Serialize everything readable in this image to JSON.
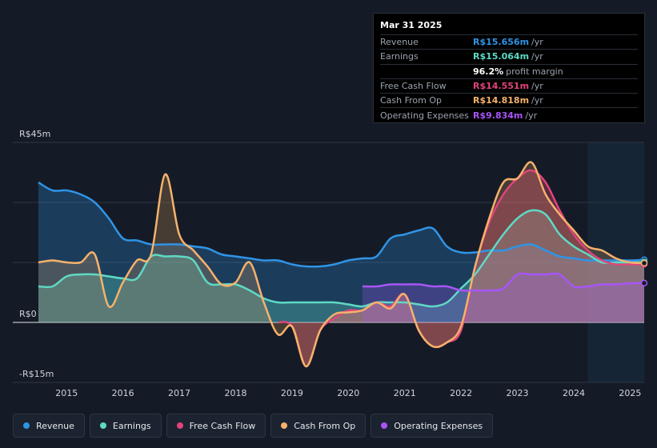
{
  "tooltip": {
    "date": "Mar 31 2025",
    "rows": [
      {
        "label": "Revenue",
        "value": "R$15.656m",
        "unit": "/yr",
        "color": "#2f94e6"
      },
      {
        "label": "Earnings",
        "value": "R$15.064m",
        "unit": "/yr",
        "color": "#5fd9c4"
      },
      {
        "label": "",
        "value": "96.2%",
        "unit": "profit margin",
        "color": "#ffffff"
      },
      {
        "label": "Free Cash Flow",
        "value": "R$14.551m",
        "unit": "/yr",
        "color": "#e0447c"
      },
      {
        "label": "Cash From Op",
        "value": "R$14.818m",
        "unit": "/yr",
        "color": "#f5b26b"
      },
      {
        "label": "Operating Expenses",
        "value": "R$9.834m",
        "unit": "/yr",
        "color": "#a855f7"
      }
    ]
  },
  "legend": [
    {
      "label": "Revenue",
      "color": "#2f94e6"
    },
    {
      "label": "Earnings",
      "color": "#5fd9c4"
    },
    {
      "label": "Free Cash Flow",
      "color": "#e0447c"
    },
    {
      "label": "Cash From Op",
      "color": "#f5b26b"
    },
    {
      "label": "Operating Expenses",
      "color": "#a855f7"
    }
  ],
  "chart_data": {
    "type": "area",
    "title": "",
    "xlabel": "",
    "ylabel": "",
    "y_axis_labels": {
      "top": "R$45m",
      "zero": "R$0",
      "bottom": "-R$15m"
    },
    "ylim": [
      -15,
      45
    ],
    "xlim": [
      2014.5,
      2025.25
    ],
    "x_ticks": [
      "2015",
      "2016",
      "2017",
      "2018",
      "2019",
      "2020",
      "2021",
      "2022",
      "2023",
      "2024",
      "2025"
    ],
    "highlight_from": 2024.25,
    "series": [
      {
        "name": "Revenue",
        "color": "#2f94e6",
        "points": [
          [
            2014.5,
            35
          ],
          [
            2014.75,
            33
          ],
          [
            2015.0,
            33
          ],
          [
            2015.25,
            32
          ],
          [
            2015.5,
            30
          ],
          [
            2015.75,
            26
          ],
          [
            2016.0,
            21
          ],
          [
            2016.25,
            20.5
          ],
          [
            2016.5,
            19.5
          ],
          [
            2016.75,
            19.5
          ],
          [
            2017.0,
            19.5
          ],
          [
            2017.25,
            19
          ],
          [
            2017.5,
            18.5
          ],
          [
            2017.75,
            17
          ],
          [
            2018.0,
            16.5
          ],
          [
            2018.25,
            16
          ],
          [
            2018.5,
            15.5
          ],
          [
            2018.75,
            15.5
          ],
          [
            2019.0,
            14.5
          ],
          [
            2019.25,
            14
          ],
          [
            2019.5,
            14
          ],
          [
            2019.75,
            14.5
          ],
          [
            2020.0,
            15.5
          ],
          [
            2020.25,
            16
          ],
          [
            2020.5,
            16.5
          ],
          [
            2020.75,
            21
          ],
          [
            2021.0,
            22
          ],
          [
            2021.25,
            23
          ],
          [
            2021.5,
            23.5
          ],
          [
            2021.75,
            19
          ],
          [
            2022.0,
            17.5
          ],
          [
            2022.25,
            17.5
          ],
          [
            2022.5,
            18
          ],
          [
            2022.75,
            18
          ],
          [
            2023.0,
            19
          ],
          [
            2023.25,
            19.5
          ],
          [
            2023.5,
            18
          ],
          [
            2023.75,
            16.5
          ],
          [
            2024.0,
            16
          ],
          [
            2024.25,
            15.5
          ],
          [
            2024.5,
            15.5
          ],
          [
            2024.75,
            15.5
          ],
          [
            2025.0,
            15.5
          ],
          [
            2025.25,
            15.656
          ]
        ]
      },
      {
        "name": "Earnings",
        "color": "#5fd9c4",
        "points": [
          [
            2014.5,
            9
          ],
          [
            2014.75,
            9
          ],
          [
            2015.0,
            11.5
          ],
          [
            2015.25,
            12
          ],
          [
            2015.5,
            12
          ],
          [
            2015.75,
            11.5
          ],
          [
            2016.0,
            11
          ],
          [
            2016.25,
            11
          ],
          [
            2016.5,
            16.5
          ],
          [
            2016.75,
            16.5
          ],
          [
            2017.0,
            16.5
          ],
          [
            2017.25,
            15.5
          ],
          [
            2017.5,
            10
          ],
          [
            2017.75,
            9.5
          ],
          [
            2018.0,
            9.5
          ],
          [
            2018.25,
            8
          ],
          [
            2018.5,
            6
          ],
          [
            2018.75,
            5
          ],
          [
            2019.0,
            5
          ],
          [
            2019.25,
            5
          ],
          [
            2019.5,
            5
          ],
          [
            2019.75,
            5
          ],
          [
            2020.0,
            4.5
          ],
          [
            2020.25,
            4
          ],
          [
            2020.5,
            5
          ],
          [
            2020.75,
            5
          ],
          [
            2021.0,
            5
          ],
          [
            2021.25,
            4.5
          ],
          [
            2021.5,
            4
          ],
          [
            2021.75,
            5
          ],
          [
            2022.0,
            8.5
          ],
          [
            2022.25,
            12
          ],
          [
            2022.5,
            17
          ],
          [
            2022.75,
            22
          ],
          [
            2023.0,
            26
          ],
          [
            2023.25,
            28
          ],
          [
            2023.5,
            27
          ],
          [
            2023.75,
            22
          ],
          [
            2024.0,
            19
          ],
          [
            2024.25,
            17
          ],
          [
            2024.5,
            15
          ],
          [
            2024.75,
            15
          ],
          [
            2025.0,
            15
          ],
          [
            2025.25,
            15.064
          ]
        ]
      },
      {
        "name": "Free Cash Flow",
        "color": "#e0447c",
        "points": [
          [
            2018.75,
            0
          ],
          [
            2019.0,
            -1
          ],
          [
            2019.25,
            -11
          ],
          [
            2019.5,
            -2
          ],
          [
            2019.75,
            1
          ],
          [
            2020.0,
            3
          ],
          [
            2020.25,
            3
          ],
          [
            2020.5,
            5
          ],
          [
            2020.75,
            4
          ],
          [
            2021.0,
            7
          ],
          [
            2021.25,
            -2
          ],
          [
            2021.5,
            -6
          ],
          [
            2021.75,
            -5
          ],
          [
            2022.0,
            -2
          ],
          [
            2022.25,
            14
          ],
          [
            2022.5,
            25
          ],
          [
            2022.75,
            32
          ],
          [
            2023.0,
            36
          ],
          [
            2023.25,
            38
          ],
          [
            2023.5,
            35
          ],
          [
            2023.75,
            28
          ],
          [
            2024.0,
            22
          ],
          [
            2024.25,
            18
          ],
          [
            2024.5,
            15.5
          ],
          [
            2024.75,
            14.5
          ],
          [
            2025.0,
            14.5
          ],
          [
            2025.25,
            14.551
          ]
        ]
      },
      {
        "name": "Cash From Op",
        "color": "#f5b26b",
        "points": [
          [
            2014.5,
            15
          ],
          [
            2014.75,
            15.5
          ],
          [
            2015.0,
            15
          ],
          [
            2015.25,
            15
          ],
          [
            2015.5,
            17
          ],
          [
            2015.75,
            4
          ],
          [
            2016.0,
            10
          ],
          [
            2016.25,
            15.5
          ],
          [
            2016.5,
            17
          ],
          [
            2016.75,
            37
          ],
          [
            2017.0,
            22
          ],
          [
            2017.25,
            18
          ],
          [
            2017.5,
            14
          ],
          [
            2017.75,
            9.5
          ],
          [
            2018.0,
            10
          ],
          [
            2018.25,
            15
          ],
          [
            2018.5,
            5
          ],
          [
            2018.75,
            -3
          ],
          [
            2019.0,
            -1
          ],
          [
            2019.25,
            -11
          ],
          [
            2019.5,
            -2
          ],
          [
            2019.75,
            2
          ],
          [
            2020.0,
            2.5
          ],
          [
            2020.25,
            3
          ],
          [
            2020.5,
            5
          ],
          [
            2020.75,
            3.5
          ],
          [
            2021.0,
            7
          ],
          [
            2021.25,
            -2
          ],
          [
            2021.5,
            -6
          ],
          [
            2021.75,
            -5
          ],
          [
            2022.0,
            -1
          ],
          [
            2022.25,
            14
          ],
          [
            2022.5,
            26
          ],
          [
            2022.75,
            35
          ],
          [
            2023.0,
            36
          ],
          [
            2023.25,
            40
          ],
          [
            2023.5,
            32
          ],
          [
            2023.75,
            27
          ],
          [
            2024.0,
            23
          ],
          [
            2024.25,
            19
          ],
          [
            2024.5,
            18
          ],
          [
            2024.75,
            16
          ],
          [
            2025.0,
            15
          ],
          [
            2025.25,
            14.818
          ]
        ]
      },
      {
        "name": "Operating Expenses",
        "color": "#a855f7",
        "points": [
          [
            2020.25,
            9
          ],
          [
            2020.5,
            9
          ],
          [
            2020.75,
            9.5
          ],
          [
            2021.0,
            9.5
          ],
          [
            2021.25,
            9.5
          ],
          [
            2021.5,
            9
          ],
          [
            2021.75,
            9
          ],
          [
            2022.0,
            8
          ],
          [
            2022.25,
            8
          ],
          [
            2022.5,
            8
          ],
          [
            2022.75,
            8.5
          ],
          [
            2023.0,
            12
          ],
          [
            2023.25,
            12
          ],
          [
            2023.5,
            12
          ],
          [
            2023.75,
            12
          ],
          [
            2024.0,
            9
          ],
          [
            2024.25,
            9
          ],
          [
            2024.5,
            9.5
          ],
          [
            2024.75,
            9.5
          ],
          [
            2025.0,
            9.8
          ],
          [
            2025.25,
            9.834
          ]
        ]
      }
    ]
  }
}
